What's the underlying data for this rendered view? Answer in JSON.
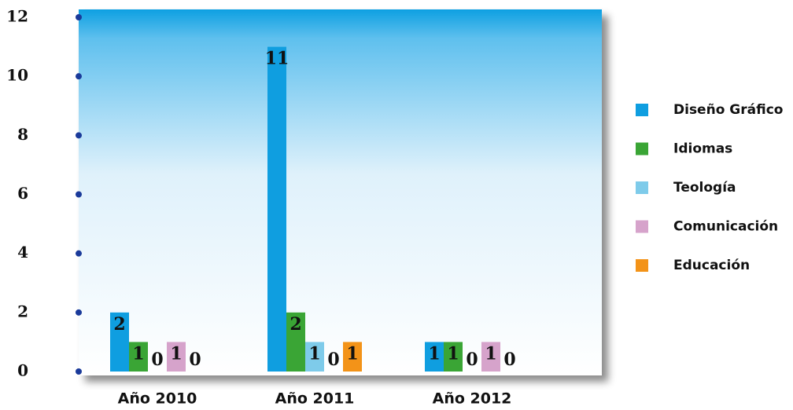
{
  "chart_data": {
    "type": "bar",
    "categories": [
      "Año 2010",
      "Año 2011",
      "Año 2012"
    ],
    "series": [
      {
        "name": "Diseño Gráfico",
        "color": "#0f9ee0",
        "values": [
          2,
          11,
          1
        ]
      },
      {
        "name": "Idiomas",
        "color": "#3aa535",
        "values": [
          1,
          2,
          1
        ]
      },
      {
        "name": "Teología",
        "color": "#7ecbea",
        "values": [
          0,
          1,
          0
        ]
      },
      {
        "name": "Comunicación",
        "color": "#d6a3cb",
        "values": [
          1,
          0,
          1
        ]
      },
      {
        "name": "Educación",
        "color": "#f39318",
        "values": [
          0,
          1,
          0
        ]
      }
    ],
    "ylim": [
      0,
      12
    ],
    "yticks": [
      0,
      2,
      4,
      6,
      8,
      10,
      12
    ],
    "legend": "right"
  }
}
